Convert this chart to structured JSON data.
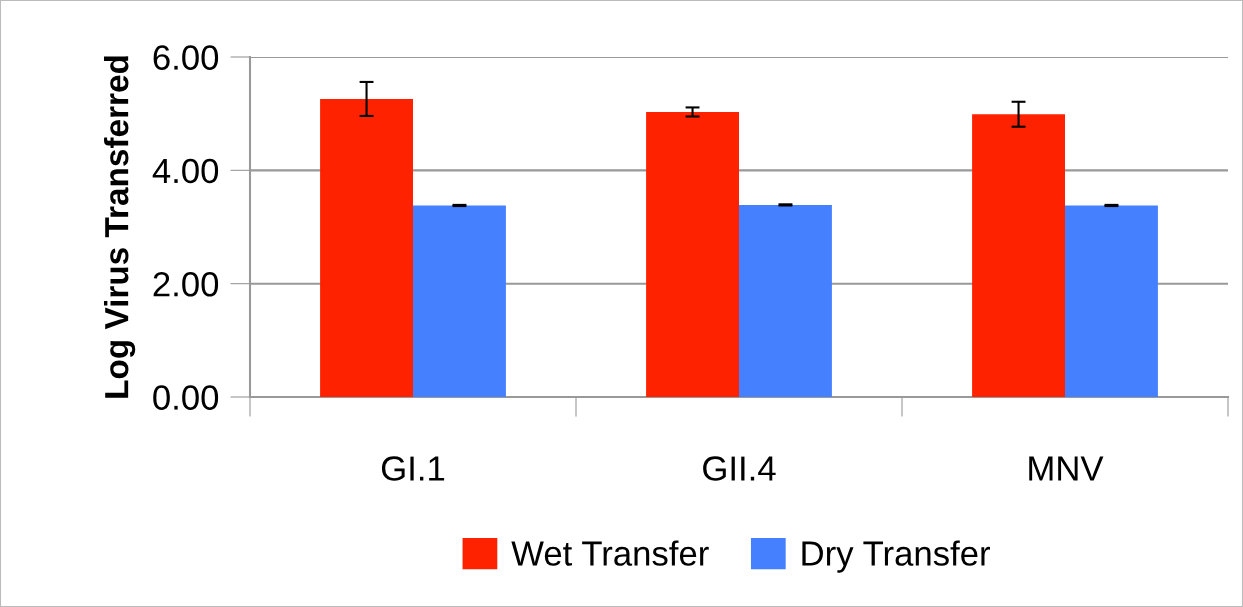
{
  "chart_data": {
    "type": "bar",
    "ylabel": "Log Virus Transferred",
    "categories": [
      "GI.1",
      "GII.4",
      "MNV"
    ],
    "series": [
      {
        "name": "Wet Transfer",
        "color": "#ff2200",
        "values": [
          5.26,
          5.03,
          4.99
        ],
        "errors": [
          0.3,
          0.08,
          0.22
        ]
      },
      {
        "name": "Dry Transfer",
        "color": "#4480ff",
        "values": [
          3.38,
          3.39,
          3.38
        ],
        "errors": [
          0.01,
          0.01,
          0.01
        ]
      }
    ],
    "ylim": [
      0,
      6
    ],
    "yticks": [
      {
        "value": 0,
        "label": "0.00"
      },
      {
        "value": 2,
        "label": "2.00"
      },
      {
        "value": 4,
        "label": "4.00"
      },
      {
        "value": 6,
        "label": "6.00"
      }
    ],
    "grid": "y",
    "legend": "bottom"
  }
}
